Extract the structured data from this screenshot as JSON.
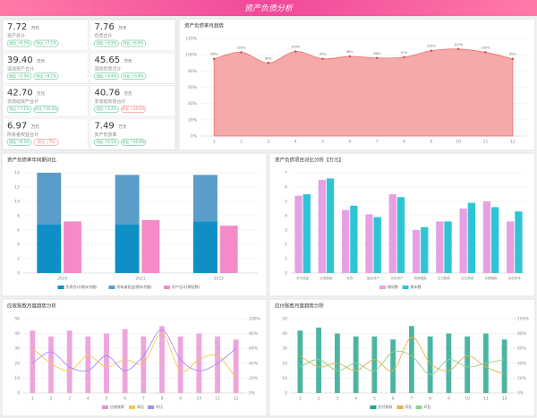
{
  "header": {
    "title": "资产负债分析"
  },
  "kpis": [
    {
      "value": "7.72",
      "unit": "万元",
      "label": "资产总计",
      "badges": [
        {
          "text": "同比 ↑6.5%",
          "trend": "up"
        },
        {
          "text": "环比 ↑7.1%",
          "trend": "up"
        }
      ]
    },
    {
      "value": "7.76",
      "unit": "万元",
      "label": "负债合计",
      "badges": [
        {
          "text": "同比 ↑6.5%",
          "trend": "up"
        },
        {
          "text": "环比 ↑6.6%",
          "trend": "up"
        }
      ]
    },
    {
      "value": "39.40",
      "unit": "万元",
      "label": "流动资产合计",
      "badges": [
        {
          "text": "同比 ↑5.9%",
          "trend": "up"
        },
        {
          "text": "环比 ↑8.1%",
          "trend": "up"
        }
      ]
    },
    {
      "value": "45.65",
      "unit": "万元",
      "label": "流动负债合计",
      "badges": [
        {
          "text": "同比 ↑9.9%",
          "trend": "up"
        },
        {
          "text": "环比 ↑9.9%",
          "trend": "up"
        }
      ]
    },
    {
      "value": "42.70",
      "unit": "万元",
      "label": "非流动资产合计",
      "badges": [
        {
          "text": "同比 ↑7.1%",
          "trend": "up"
        },
        {
          "text": "环比 ↑10.2%",
          "trend": "up"
        }
      ]
    },
    {
      "value": "40.76",
      "unit": "万元",
      "label": "非流动负债合计",
      "badges": [
        {
          "text": "同比 ↑2.2%",
          "trend": "up"
        },
        {
          "text": "环比 ↓10.6%",
          "trend": "down"
        }
      ]
    },
    {
      "value": "6.97",
      "unit": "万元",
      "label": "所有者权益合计",
      "badges": [
        {
          "text": "同比 ↑6.5%",
          "trend": "up"
        },
        {
          "text": "环比 ↓7%",
          "trend": "down"
        }
      ]
    },
    {
      "value": "7.49",
      "unit": "万元",
      "label": "资产负债率",
      "badges": [
        {
          "text": "同比 ↑6.5%",
          "trend": "up"
        },
        {
          "text": "环比 ↑10.9%",
          "trend": "up"
        }
      ]
    }
  ],
  "chart_data": [
    {
      "type": "area",
      "title": "资产负债率月趋势",
      "categories": [
        "1",
        "2",
        "3",
        "4",
        "5",
        "6",
        "7",
        "8",
        "9",
        "10",
        "11",
        "12"
      ],
      "values": [
        95,
        103,
        90,
        104,
        95,
        98,
        96,
        97,
        105,
        107,
        103,
        95
      ],
      "value_labels": [
        "95%",
        "103%",
        "90%",
        "104%",
        "95%",
        "98%",
        "96%",
        "97%",
        "105%",
        "107%",
        "103%",
        "95%"
      ],
      "color": "#f59a9a",
      "ylim": [
        0,
        120
      ],
      "yticks": [
        {
          "value": 0,
          "label": "0%"
        },
        {
          "value": 20,
          "label": "20%"
        },
        {
          "value": 40,
          "label": "40%"
        },
        {
          "value": 60,
          "label": "60%"
        },
        {
          "value": 80,
          "label": "80%"
        },
        {
          "value": 100,
          "label": "100%"
        },
        {
          "value": 120,
          "label": "120%"
        }
      ],
      "grid": true
    },
    {
      "type": "bar",
      "title": "资产负债率年同期对比",
      "categories": [
        "2020",
        "2021",
        "2022"
      ],
      "series": [
        {
          "name": "负债合计(期末余额)",
          "color": "#0e8fc6",
          "values": [
            6.8,
            6.8,
            7.2
          ],
          "stacked": true
        },
        {
          "name": "所有者权益(期末余额)",
          "color": "#5b9dc9",
          "values": [
            7.2,
            6.9,
            6.5
          ],
          "stacked": true
        },
        {
          "name": "资产总计(期初数)",
          "color": "#f48ac8",
          "values": [
            7.2,
            7.4,
            6.6
          ]
        }
      ],
      "ylim": [
        0,
        14
      ],
      "yticks": [
        0,
        2,
        4,
        6,
        8,
        10,
        12,
        14
      ],
      "grid": true
    },
    {
      "type": "bar",
      "title": "资产负债项目对比分析【万元】",
      "categories": [
        "货币资金",
        "应收账款",
        "存货",
        "固定资产",
        "无形资产",
        "短期借款",
        "应付账款",
        "应交税费",
        "长期借款",
        "实收资本"
      ],
      "series": [
        {
          "name": "期初数",
          "color": "#e7a0e3",
          "values": [
            5.4,
            6.5,
            4.4,
            4.1,
            5.5,
            3.0,
            3.6,
            4.5,
            5.0,
            3.6
          ]
        },
        {
          "name": "期末数",
          "color": "#2ec4d6",
          "values": [
            5.5,
            6.6,
            4.7,
            3.9,
            5.3,
            3.2,
            3.6,
            4.9,
            4.6,
            4.3
          ]
        }
      ],
      "ylim": [
        0,
        7
      ],
      "yticks": [
        0,
        1,
        2,
        3,
        4,
        5,
        6,
        7
      ],
      "grid": true
    },
    {
      "type": "combo",
      "title": "应收账款月度趋势分析",
      "categories": [
        "1",
        "2",
        "3",
        "4",
        "5",
        "6",
        "7",
        "8",
        "9",
        "10",
        "11",
        "12"
      ],
      "series": [
        {
          "name": "应收账款",
          "color": "#e98fd3",
          "values": [
            42,
            38,
            42,
            38,
            40,
            43,
            38,
            45,
            38,
            40,
            38,
            36
          ]
        },
        {
          "name": "同比",
          "color": "#f2c94c",
          "axis": "y2",
          "values": [
            60,
            40,
            30,
            50,
            35,
            45,
            40,
            80,
            30,
            45,
            50,
            20
          ]
        },
        {
          "name": "环比",
          "color": "#a78bfa",
          "axis": "y2",
          "values": [
            40,
            55,
            35,
            30,
            50,
            30,
            50,
            85,
            45,
            30,
            40,
            60
          ]
        }
      ],
      "ylim": [
        0,
        50
      ],
      "yticks": [
        0,
        10,
        20,
        30,
        40,
        50
      ],
      "y2lim": [
        0,
        100
      ],
      "y2ticks": [
        {
          "value": 0,
          "label": "0%"
        },
        {
          "value": 20,
          "label": "20%"
        },
        {
          "value": 40,
          "label": "40%"
        },
        {
          "value": 60,
          "label": "60%"
        },
        {
          "value": 80,
          "label": "80%"
        },
        {
          "value": 100,
          "label": "100%"
        }
      ],
      "grid": true
    },
    {
      "type": "combo",
      "title": "应付账款月度趋势分析",
      "categories": [
        "1",
        "2",
        "3",
        "4",
        "5",
        "6",
        "7",
        "8",
        "9",
        "10",
        "11",
        "12"
      ],
      "series": [
        {
          "name": "应付账款",
          "color": "#1fa38a",
          "values": [
            42,
            44,
            40,
            38,
            38,
            36,
            45,
            38,
            40,
            38,
            40,
            36
          ]
        },
        {
          "name": "同比",
          "color": "#e8b04a",
          "axis": "y2",
          "values": [
            50,
            35,
            40,
            30,
            45,
            30,
            75,
            40,
            30,
            50,
            35,
            25
          ]
        },
        {
          "name": "环比",
          "color": "#8fd18b",
          "axis": "y2",
          "values": [
            35,
            45,
            30,
            40,
            30,
            55,
            50,
            25,
            45,
            35,
            40,
            45
          ]
        }
      ],
      "ylim": [
        0,
        50
      ],
      "yticks": [
        0,
        10,
        20,
        30,
        40,
        50
      ],
      "y2lim": [
        0,
        100
      ],
      "y2ticks": [
        {
          "value": 0,
          "label": "0%"
        },
        {
          "value": 20,
          "label": "20%"
        },
        {
          "value": 40,
          "label": "40%"
        },
        {
          "value": 60,
          "label": "60%"
        },
        {
          "value": 80,
          "label": "80%"
        },
        {
          "value": 100,
          "label": "100%"
        }
      ],
      "grid": true
    }
  ]
}
